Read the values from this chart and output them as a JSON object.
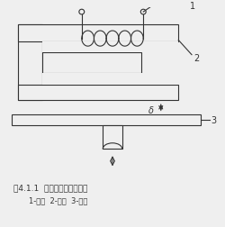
{
  "title_line1": "图4.1.1  变气隙型电感传感器",
  "title_line2": "1-线圈  2-铁芯  3-衔铁",
  "label1": "1",
  "label2": "2",
  "label3": "3",
  "delta_label": "δ",
  "bg_color": "#efefef",
  "line_color": "#333333",
  "title_fontsize": 6.5,
  "subtitle_fontsize": 6.0,
  "coil_color": "#444444"
}
